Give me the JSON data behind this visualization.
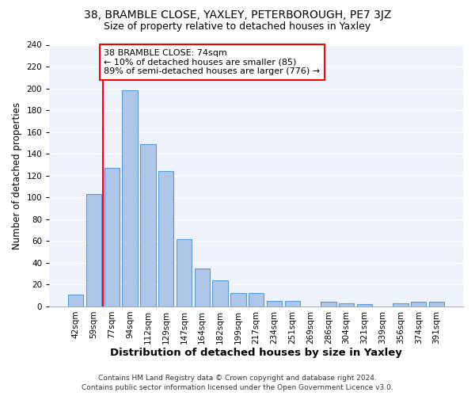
{
  "title": "38, BRAMBLE CLOSE, YAXLEY, PETERBOROUGH, PE7 3JZ",
  "subtitle": "Size of property relative to detached houses in Yaxley",
  "xlabel": "Distribution of detached houses by size in Yaxley",
  "ylabel": "Number of detached properties",
  "categories": [
    "42sqm",
    "59sqm",
    "77sqm",
    "94sqm",
    "112sqm",
    "129sqm",
    "147sqm",
    "164sqm",
    "182sqm",
    "199sqm",
    "217sqm",
    "234sqm",
    "251sqm",
    "269sqm",
    "286sqm",
    "304sqm",
    "321sqm",
    "339sqm",
    "356sqm",
    "374sqm",
    "391sqm"
  ],
  "values": [
    11,
    103,
    127,
    198,
    149,
    124,
    62,
    35,
    24,
    12,
    12,
    5,
    5,
    0,
    4,
    3,
    2,
    0,
    3,
    4,
    4
  ],
  "bar_color": "#aec6e8",
  "bar_edge_color": "#5b9bd5",
  "annotation_line1": "38 BRAMBLE CLOSE: 74sqm",
  "annotation_line2": "← 10% of detached houses are smaller (85)",
  "annotation_line3": "89% of semi-detached houses are larger (776) →",
  "annotation_box_color": "white",
  "annotation_box_edge_color": "red",
  "vline_color": "red",
  "vline_x": 1.5,
  "ylim": [
    0,
    240
  ],
  "yticks": [
    0,
    20,
    40,
    60,
    80,
    100,
    120,
    140,
    160,
    180,
    200,
    220,
    240
  ],
  "footer_line1": "Contains HM Land Registry data © Crown copyright and database right 2024.",
  "footer_line2": "Contains public sector information licensed under the Open Government Licence v3.0.",
  "bg_color": "#eef3fb",
  "grid_color": "white",
  "title_fontsize": 10,
  "subtitle_fontsize": 9,
  "xlabel_fontsize": 9.5,
  "ylabel_fontsize": 8.5,
  "tick_fontsize": 7.5,
  "annotation_fontsize": 8,
  "footer_fontsize": 6.5
}
